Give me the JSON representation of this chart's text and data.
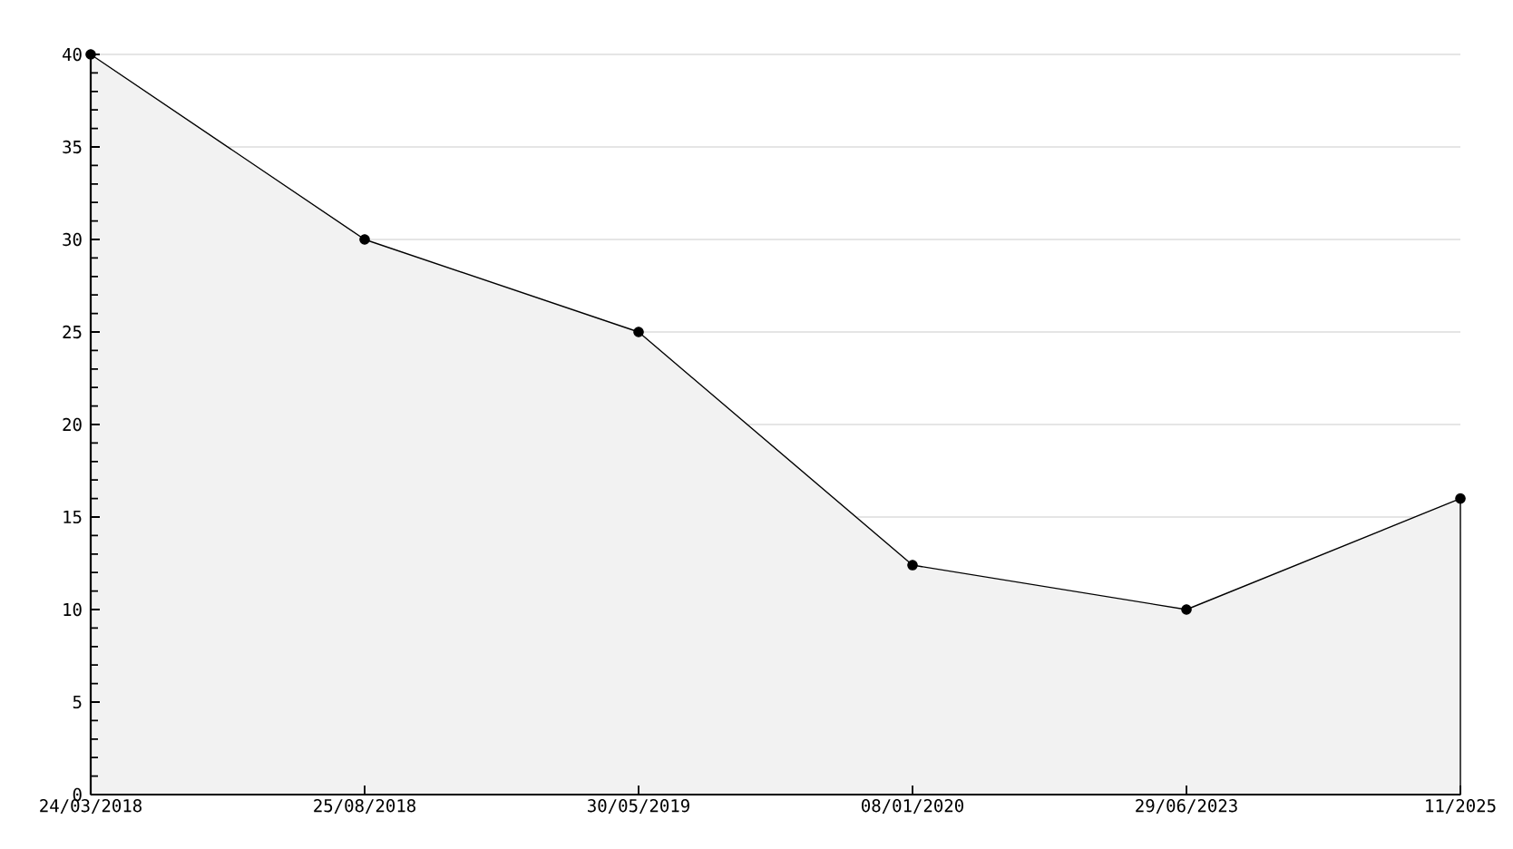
{
  "chart_data": {
    "type": "area",
    "categories": [
      "24/03/2018",
      "25/08/2018",
      "30/05/2019",
      "08/01/2020",
      "29/06/2023",
      "11/2025"
    ],
    "values": [
      40,
      30,
      25,
      12.4,
      10,
      16
    ],
    "color": "#f2f2f2",
    "ylim": [
      0,
      40
    ],
    "yticks": [
      0,
      5,
      10,
      15,
      20,
      25,
      30,
      35,
      40
    ],
    "grid": "y",
    "marker": "circle",
    "line_style": "solid"
  }
}
